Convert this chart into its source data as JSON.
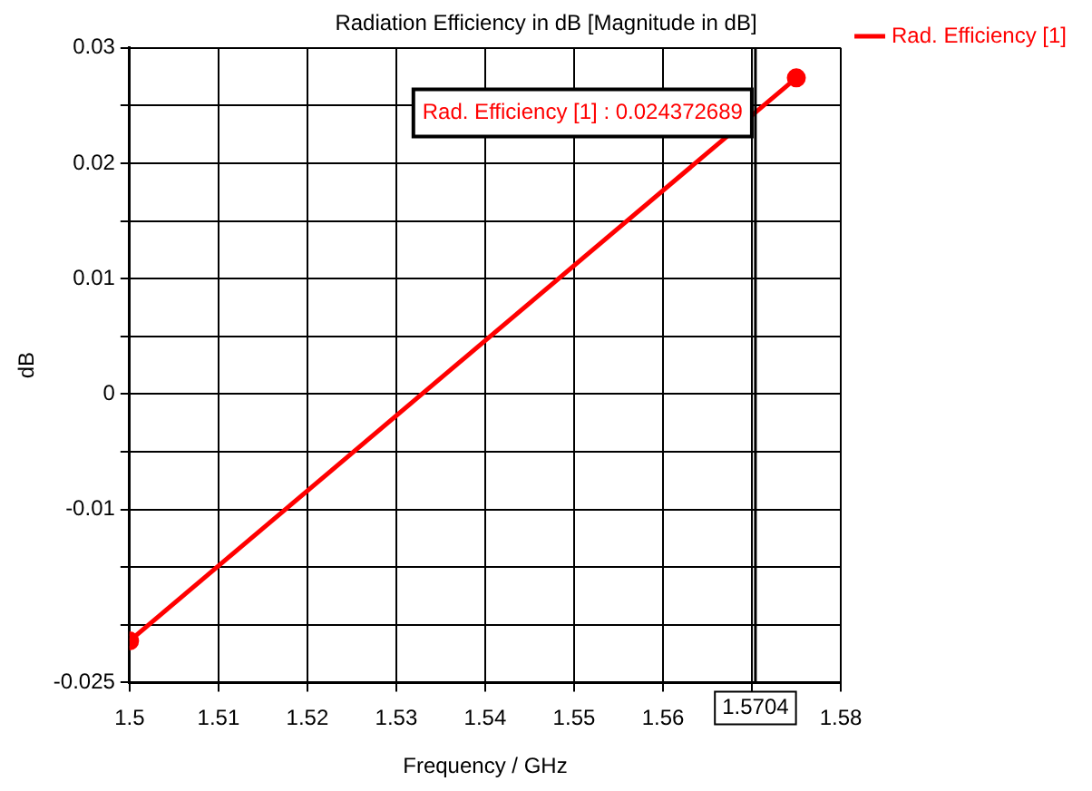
{
  "chart_data": {
    "type": "line",
    "title": "Radiation Efficiency in dB [Magnitude in dB]",
    "xlabel": "Frequency / GHz",
    "ylabel": "dB",
    "x": [
      1.5,
      1.575
    ],
    "series": [
      {
        "name": "Rad. Efficiency [1]",
        "color": "#ff0000",
        "values": [
          -0.0214,
          0.0274
        ]
      }
    ],
    "xlim": [
      1.5,
      1.58
    ],
    "xticks": [
      1.5,
      1.51,
      1.52,
      1.53,
      1.54,
      1.55,
      1.56,
      {
        "value": 1.57,
        "label": null
      },
      1.58
    ],
    "ylim": [
      -0.025,
      0.03
    ],
    "yticks": [
      -0.025,
      {
        "value": -0.02,
        "label": null
      },
      {
        "value": -0.015,
        "label": null
      },
      -0.01,
      {
        "value": -0.005,
        "label": null
      },
      0,
      {
        "value": 0.005,
        "label": null
      },
      0.01,
      {
        "value": 0.015,
        "label": null
      },
      0.02,
      {
        "value": 0.025,
        "label": null
      },
      0.03
    ],
    "ref_lines": [
      {
        "axis": "x",
        "value": 1.5704,
        "label": "1.5704",
        "color": "#000000"
      }
    ],
    "annotations": [
      {
        "text": "Rad. Efficiency [1] : 0.024372689",
        "x": 1.5704,
        "y": 0.024372689
      }
    ],
    "grid": true,
    "legend": "right",
    "marker": "circle",
    "line_style": "solid"
  }
}
